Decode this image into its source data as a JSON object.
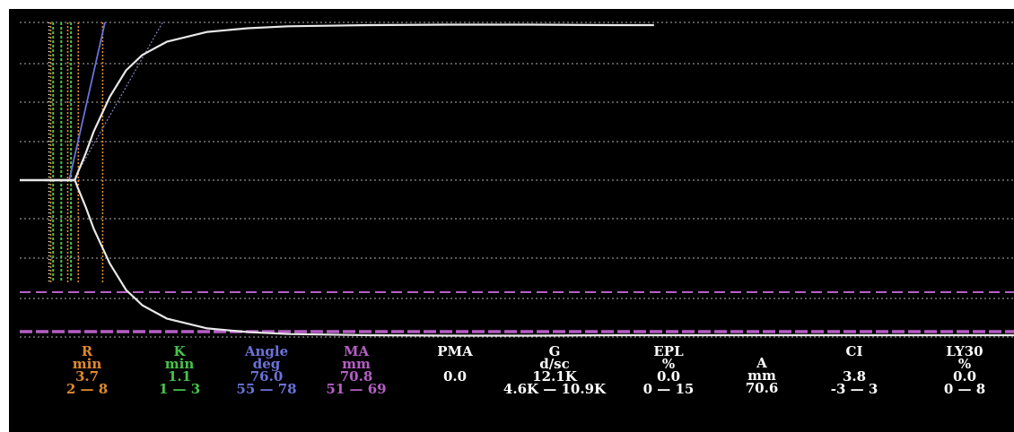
{
  "chart_data": {
    "type": "line",
    "title": "",
    "colors": {
      "background": "#000000",
      "trace": "#e8e8e8",
      "grid": "#8c8c8c",
      "r_marker": "#e08a2a",
      "k_marker": "#48c24b",
      "angle_marker": "#6b72d8",
      "ma_marker": "#b55fc4",
      "normal_white": "#ffffff"
    },
    "trace": {
      "x": [
        0,
        1,
        2,
        3,
        3.7,
        4,
        5,
        6,
        8,
        10,
        12,
        15,
        20,
        25,
        30,
        40,
        50,
        60,
        70,
        75
      ],
      "amplitude": [
        0,
        0,
        0,
        0,
        0,
        3,
        12,
        22,
        38,
        50,
        57,
        63,
        67.5,
        69.2,
        70.1,
        70.6,
        70.8,
        70.8,
        70.6,
        70.6
      ]
    },
    "ma_normal_range": [
      51,
      69
    ],
    "parameters": [
      {
        "name": "R",
        "unit": "min",
        "value": "3.7",
        "range": "2 — 8",
        "color": "#e08a2a"
      },
      {
        "name": "K",
        "unit": "min",
        "value": "1.1",
        "range": "1 — 3",
        "color": "#48c24b"
      },
      {
        "name": "Angle",
        "unit": "deg",
        "value": "76.0",
        "range": "55 — 78",
        "color": "#6b72d8"
      },
      {
        "name": "MA",
        "unit": "mm",
        "value": "70.8",
        "range": "51 — 69",
        "color": "#b55fc4"
      },
      {
        "name": "PMA",
        "unit": "",
        "value": "0.0",
        "range": "",
        "color": "#ffffff"
      },
      {
        "name": "G",
        "unit": "d/sc",
        "value": "12.1K",
        "range": "4.6K — 10.9K",
        "color": "#ffffff"
      },
      {
        "name": "EPL",
        "unit": "%",
        "value": "0.0",
        "range": "0 — 15",
        "color": "#ffffff"
      },
      {
        "name": "A",
        "unit": "mm",
        "value": "70.6",
        "range": "",
        "color": "#ffffff"
      },
      {
        "name": "CI",
        "unit": "",
        "value": "3.8",
        "range": "-3 — 3",
        "color": "#ffffff"
      },
      {
        "name": "LY30",
        "unit": "%",
        "value": "0.0",
        "range": "0 — 8",
        "color": "#ffffff"
      }
    ]
  }
}
